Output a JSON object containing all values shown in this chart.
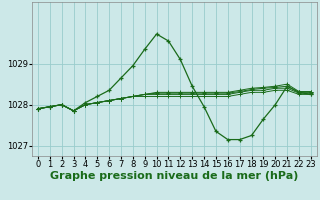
{
  "title": "Graphe pression niveau de la mer (hPa)",
  "background_color": "#cce8e8",
  "grid_color": "#99cccc",
  "line_color": "#1a6b1a",
  "xlim": [
    -0.5,
    23.5
  ],
  "ylim": [
    1026.75,
    1030.5
  ],
  "yticks": [
    1027,
    1028,
    1029
  ],
  "xticks": [
    0,
    1,
    2,
    3,
    4,
    5,
    6,
    7,
    8,
    9,
    10,
    11,
    12,
    13,
    14,
    15,
    16,
    17,
    18,
    19,
    20,
    21,
    22,
    23
  ],
  "series": [
    [
      1027.9,
      1027.95,
      1028.0,
      1027.85,
      1028.05,
      1028.2,
      1028.35,
      1028.65,
      1028.95,
      1029.35,
      1029.72,
      1029.55,
      1029.1,
      1028.45,
      1027.95,
      1027.35,
      1027.15,
      1027.15,
      1027.25,
      1027.65,
      1028.0,
      1028.45,
      1028.3,
      1028.25
    ],
    [
      1027.9,
      1027.95,
      1028.0,
      1027.85,
      1028.0,
      1028.05,
      1028.1,
      1028.15,
      1028.2,
      1028.2,
      1028.2,
      1028.2,
      1028.2,
      1028.2,
      1028.2,
      1028.2,
      1028.2,
      1028.25,
      1028.3,
      1028.3,
      1028.35,
      1028.35,
      1028.25,
      1028.25
    ],
    [
      1027.9,
      1027.95,
      1028.0,
      1027.85,
      1028.0,
      1028.05,
      1028.1,
      1028.15,
      1028.2,
      1028.25,
      1028.25,
      1028.25,
      1028.25,
      1028.25,
      1028.25,
      1028.25,
      1028.25,
      1028.3,
      1028.35,
      1028.35,
      1028.4,
      1028.4,
      1028.28,
      1028.28
    ],
    [
      1027.9,
      1027.95,
      1028.0,
      1027.85,
      1028.0,
      1028.05,
      1028.1,
      1028.15,
      1028.2,
      1028.25,
      1028.28,
      1028.28,
      1028.28,
      1028.28,
      1028.28,
      1028.28,
      1028.28,
      1028.32,
      1028.37,
      1028.4,
      1028.42,
      1028.45,
      1028.3,
      1028.3
    ],
    [
      1027.9,
      1027.95,
      1028.0,
      1027.85,
      1028.0,
      1028.05,
      1028.1,
      1028.15,
      1028.2,
      1028.25,
      1028.3,
      1028.3,
      1028.3,
      1028.3,
      1028.3,
      1028.3,
      1028.3,
      1028.35,
      1028.4,
      1028.42,
      1028.45,
      1028.5,
      1028.32,
      1028.32
    ]
  ],
  "title_fontsize": 8,
  "tick_fontsize": 6
}
